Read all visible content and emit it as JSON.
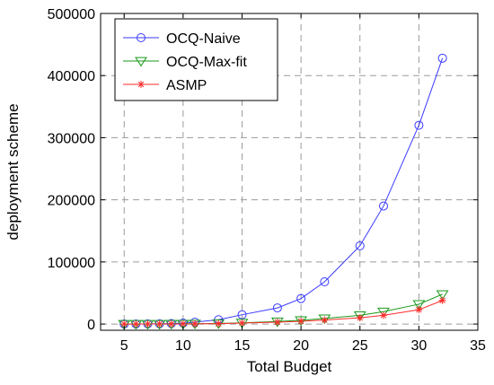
{
  "chart_data": {
    "type": "line",
    "xlabel": "Total Budget",
    "ylabel": "deployment scheme",
    "xlim": [
      3,
      35
    ],
    "ylim": [
      -10000,
      500000
    ],
    "xticks": [
      5,
      10,
      15,
      20,
      25,
      30,
      35
    ],
    "yticks": [
      0,
      100000,
      200000,
      300000,
      400000,
      500000
    ],
    "grid": true,
    "legend_position": "top-left",
    "series": [
      {
        "name": "OCQ-Naive",
        "color": "#3a3aff",
        "marker": "circle",
        "x": [
          5,
          6,
          7,
          8,
          9,
          10,
          11,
          13,
          15,
          18,
          20,
          22,
          25,
          27,
          30,
          32
        ],
        "y": [
          50,
          150,
          300,
          500,
          900,
          1500,
          3000,
          7000,
          15000,
          26000,
          41000,
          68000,
          126000,
          190000,
          320000,
          428000
        ]
      },
      {
        "name": "OCQ-Max-fit",
        "color": "#1a9a1a",
        "marker": "triangle-down",
        "x": [
          5,
          6,
          7,
          8,
          9,
          10,
          11,
          13,
          15,
          18,
          20,
          22,
          25,
          27,
          30,
          32
        ],
        "y": [
          10,
          30,
          60,
          100,
          200,
          300,
          500,
          1000,
          2000,
          4000,
          6000,
          9000,
          14000,
          20000,
          32000,
          48000
        ]
      },
      {
        "name": "ASMP",
        "color": "#ff2a2a",
        "marker": "star",
        "x": [
          5,
          6,
          7,
          8,
          9,
          10,
          11,
          13,
          15,
          18,
          20,
          22,
          25,
          27,
          30,
          32
        ],
        "y": [
          5,
          20,
          40,
          70,
          130,
          200,
          350,
          700,
          1500,
          3000,
          4500,
          6500,
          10000,
          14000,
          23000,
          38000
        ]
      }
    ]
  }
}
